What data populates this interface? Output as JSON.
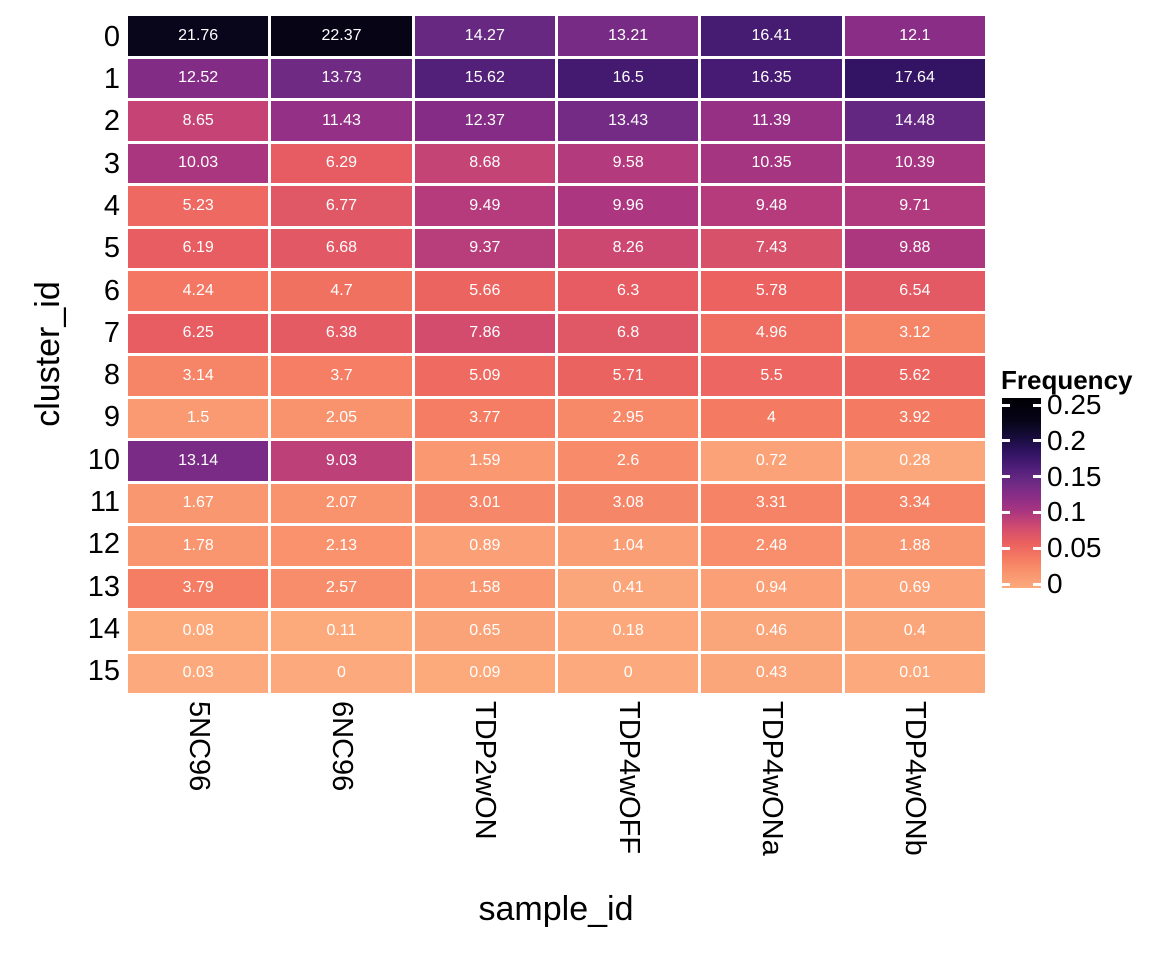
{
  "chart_data": {
    "type": "heatmap",
    "xlabel": "sample_id",
    "ylabel": "cluster_id",
    "categories_x": [
      "5NC96",
      "6NC96",
      "TDP2wON",
      "TDP4wOFF",
      "TDP4wONa",
      "TDP4wONb"
    ],
    "categories_y": [
      "0",
      "1",
      "2",
      "3",
      "4",
      "5",
      "6",
      "7",
      "8",
      "9",
      "10",
      "11",
      "12",
      "13",
      "14",
      "15"
    ],
    "values": [
      [
        "21.76",
        "22.37",
        "14.27",
        "13.21",
        "16.41",
        "12.1"
      ],
      [
        "12.52",
        "13.73",
        "15.62",
        "16.5",
        "16.35",
        "17.64"
      ],
      [
        "8.65",
        "11.43",
        "12.37",
        "13.43",
        "11.39",
        "14.48"
      ],
      [
        "10.03",
        "6.29",
        "8.68",
        "9.58",
        "10.35",
        "10.39"
      ],
      [
        "5.23",
        "6.77",
        "9.49",
        "9.96",
        "9.48",
        "9.71"
      ],
      [
        "6.19",
        "6.68",
        "9.37",
        "8.26",
        "7.43",
        "9.88"
      ],
      [
        "4.24",
        "4.7",
        "5.66",
        "6.3",
        "5.78",
        "6.54"
      ],
      [
        "6.25",
        "6.38",
        "7.86",
        "6.8",
        "4.96",
        "3.12"
      ],
      [
        "3.14",
        "3.7",
        "5.09",
        "5.71",
        "5.5",
        "5.62"
      ],
      [
        "1.5",
        "2.05",
        "3.77",
        "2.95",
        "4",
        "3.92"
      ],
      [
        "13.14",
        "9.03",
        "1.59",
        "2.6",
        "0.72",
        "0.28"
      ],
      [
        "1.67",
        "2.07",
        "3.01",
        "3.08",
        "3.31",
        "3.34"
      ],
      [
        "1.78",
        "2.13",
        "0.89",
        "1.04",
        "2.48",
        "1.88"
      ],
      [
        "3.79",
        "2.57",
        "1.58",
        "0.41",
        "0.94",
        "0.69"
      ],
      [
        "0.08",
        "0.11",
        "0.65",
        "0.18",
        "0.46",
        "0.4"
      ],
      [
        "0.03",
        "0",
        "0.09",
        "0",
        "0.43",
        "0.01"
      ]
    ],
    "values_unit": "percent of sample (fill mapped to Frequency = value/100)",
    "legend": {
      "title": "Frequency",
      "position": "right",
      "ticks": [
        "0.25",
        "0.2",
        "0.15",
        "0.1",
        "0.05",
        "0"
      ],
      "tick_values": [
        0.25,
        0.2,
        0.15,
        0.1,
        0.05,
        0
      ],
      "range": [
        0,
        0.25
      ]
    },
    "grid": false,
    "colors": {
      "cell_border": "#ffffff",
      "cell_text": "#ffffff",
      "axis_text": "#000000",
      "background": "#ffffff",
      "gradient_stops": [
        [
          0.0,
          "#fcaa7d"
        ],
        [
          0.08,
          "#f9946e"
        ],
        [
          0.16,
          "#f47a62"
        ],
        [
          0.24,
          "#ea5f60"
        ],
        [
          0.32,
          "#d14b6f"
        ],
        [
          0.4,
          "#ab3680"
        ],
        [
          0.48,
          "#8b2d87"
        ],
        [
          0.56,
          "#6b2a84"
        ],
        [
          0.64,
          "#4c1d77"
        ],
        [
          0.72,
          "#2e1260"
        ],
        [
          0.8,
          "#150c38"
        ],
        [
          0.88,
          "#070417"
        ],
        [
          1.0,
          "#000004"
        ]
      ],
      "gradient_domain_max_percent": 25
    }
  }
}
